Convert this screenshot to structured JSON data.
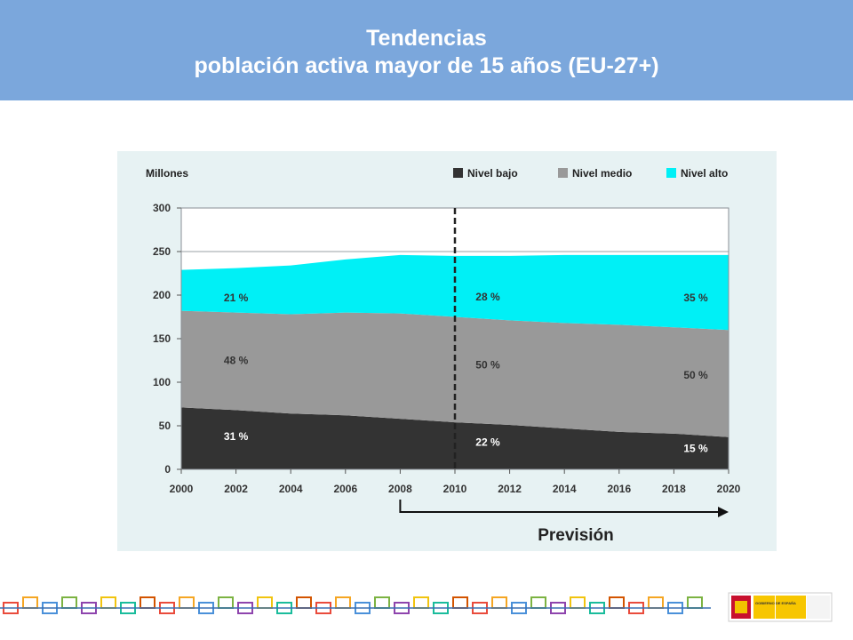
{
  "header": {
    "title": "Tendencias",
    "subtitle": "población activa mayor de 15 años (EU-27+)"
  },
  "chart_data": {
    "type": "area",
    "stacked": true,
    "ylabel": "Millones",
    "ylim": [
      0,
      300
    ],
    "yticks": [
      0,
      50,
      100,
      150,
      200,
      250,
      300
    ],
    "x": [
      2000,
      2002,
      2004,
      2006,
      2008,
      2010,
      2012,
      2014,
      2016,
      2018,
      2020
    ],
    "series": [
      {
        "name": "Nivel bajo",
        "color": "#333333",
        "values": [
          71,
          68,
          64,
          62,
          58,
          54,
          51,
          47,
          43,
          41,
          37
        ]
      },
      {
        "name": "Nivel medio",
        "color": "#999999",
        "values": [
          111,
          112,
          114,
          118,
          121,
          121,
          120,
          121,
          123,
          122,
          123
        ]
      },
      {
        "name": "Nivel alto",
        "color": "#00f0f6",
        "values": [
          47,
          51,
          56,
          61,
          67,
          70,
          74,
          78,
          80,
          83,
          86
        ]
      }
    ],
    "annotations": [
      {
        "text": "31 %",
        "x": 2002,
        "y": 38
      },
      {
        "text": "48 %",
        "x": 2002,
        "y": 125
      },
      {
        "text": "21 %",
        "x": 2002,
        "y": 197
      },
      {
        "text": "22 %",
        "x": 2011.2,
        "y": 31
      },
      {
        "text": "50 %",
        "x": 2011.2,
        "y": 120
      },
      {
        "text": "28 %",
        "x": 2011.2,
        "y": 198
      },
      {
        "text": "15 %",
        "x": 2018.8,
        "y": 24
      },
      {
        "text": "50 %",
        "x": 2018.8,
        "y": 108
      },
      {
        "text": "35 %",
        "x": 2018.8,
        "y": 197
      }
    ],
    "forecast_start": 2010,
    "forecast_label": "Previsión",
    "arrow_from": 2008,
    "arrow_to": 2020,
    "reference_line_y": 250,
    "legend_position": "top-right",
    "grid": false
  },
  "footer": {
    "link_colors": [
      "#e94b3c",
      "#f5a623",
      "#4a90d9",
      "#7cb342",
      "#8e44ad",
      "#f1c40f",
      "#1abc9c",
      "#d35400"
    ],
    "logo_text": "GOBIERNO DE ESPAÑA"
  }
}
